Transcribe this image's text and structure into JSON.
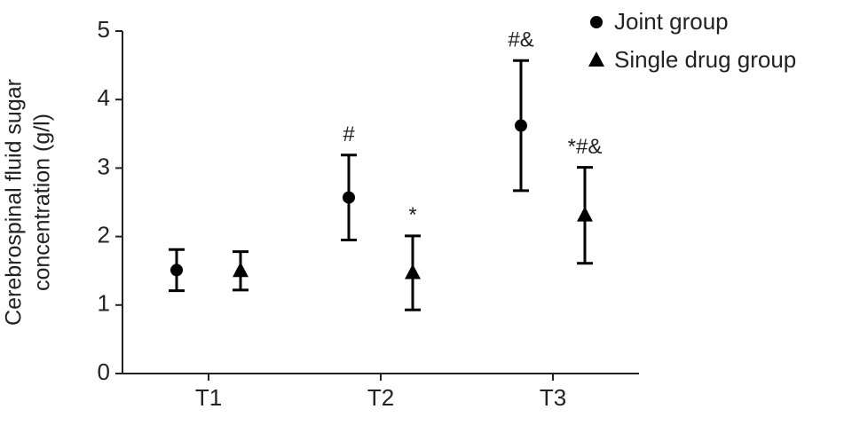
{
  "chart_data": {
    "type": "errorbar",
    "y_label": [
      "Cerebrospinal fluid sugar",
      "concentration (g/l)"
    ],
    "categories": [
      "T1",
      "T2",
      "T3"
    ],
    "series": [
      {
        "name": "Joint group",
        "marker": "circle",
        "color": "#000000",
        "values": [
          1.51,
          2.57,
          3.62
        ],
        "errors": [
          0.3,
          0.62,
          0.95
        ],
        "annotations": [
          null,
          "#",
          "#&"
        ]
      },
      {
        "name": "Single drug group",
        "marker": "triangle",
        "color": "#000000",
        "values": [
          1.5,
          1.47,
          2.31
        ],
        "errors": [
          0.28,
          0.54,
          0.7
        ],
        "annotations": [
          null,
          "*",
          "*#&"
        ]
      }
    ],
    "ylim": [
      0,
      5
    ],
    "yticks": [
      0,
      1,
      2,
      3,
      4,
      5
    ]
  }
}
